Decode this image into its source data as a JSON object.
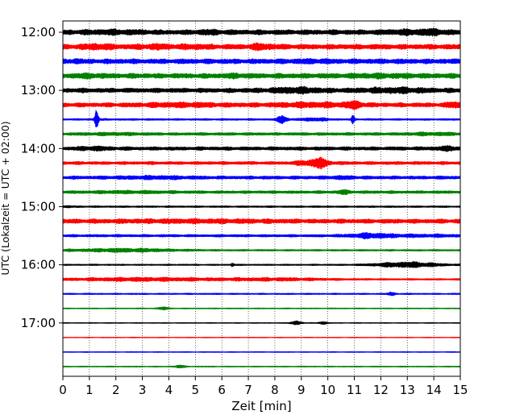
{
  "chart_data": {
    "type": "line",
    "title": "",
    "xlabel": "Zeit  [min]",
    "ylabel": "UTC (Lokalzeit = UTC + 02:00)",
    "xlim": [
      0,
      15
    ],
    "x_ticks": [
      0,
      1,
      2,
      3,
      4,
      5,
      6,
      7,
      8,
      9,
      10,
      11,
      12,
      13,
      14,
      15
    ],
    "x_grid": true,
    "y_tick_labels": [
      "12:00",
      "13:00",
      "14:00",
      "15:00",
      "16:00",
      "17:00"
    ],
    "y_tick_rows": [
      0,
      4,
      8,
      12,
      16,
      20
    ],
    "row_minutes": 15,
    "start_time": "12:00",
    "row_colors": [
      "#000000",
      "#ff0000",
      "#0000ff",
      "#008000"
    ],
    "rows": [
      {
        "time": "12:00",
        "base": 3.5,
        "events": [
          {
            "t": 2.0,
            "w": 1.0,
            "a": 1.2
          },
          {
            "t": 5.5,
            "w": 0.4,
            "a": 1.3
          },
          {
            "t": 13.0,
            "w": 0.8,
            "a": 1.5
          },
          {
            "t": 14.0,
            "w": 0.5,
            "a": 1.8
          }
        ]
      },
      {
        "time": "12:15",
        "base": 3.5,
        "events": [
          {
            "t": 1.3,
            "w": 0.6,
            "a": 2.0
          },
          {
            "t": 3.5,
            "w": 0.6,
            "a": 1.5
          },
          {
            "t": 5.0,
            "w": 0.5,
            "a": 1.3
          },
          {
            "t": 7.5,
            "w": 0.5,
            "a": 2.0
          }
        ]
      },
      {
        "time": "12:30",
        "base": 3.5,
        "events": [
          {
            "t": 0.5,
            "w": 0.3,
            "a": 1.0
          },
          {
            "t": 9.3,
            "w": 0.6,
            "a": 0.8
          }
        ]
      },
      {
        "time": "12:45",
        "base": 3.5,
        "events": [
          {
            "t": 1.0,
            "w": 0.5,
            "a": 1.0
          },
          {
            "t": 6.5,
            "w": 0.5,
            "a": 0.8
          },
          {
            "t": 12.0,
            "w": 1.0,
            "a": 1.0
          }
        ]
      },
      {
        "time": "13:00",
        "base": 3.2,
        "events": [
          {
            "t": 8.8,
            "w": 1.0,
            "a": 2.3
          },
          {
            "t": 12.5,
            "w": 1.2,
            "a": 2.0
          }
        ]
      },
      {
        "time": "13:15",
        "base": 3.0,
        "events": [
          {
            "t": 4.5,
            "w": 1.5,
            "a": 1.5
          },
          {
            "t": 9.5,
            "w": 1.5,
            "a": 1.8
          },
          {
            "t": 11.0,
            "w": 0.3,
            "a": 3.0
          },
          {
            "t": 14.8,
            "w": 0.3,
            "a": 2.5
          }
        ]
      },
      {
        "time": "13:30",
        "base": 1.3,
        "events": [
          {
            "t": 1.27,
            "w": 0.07,
            "a": 18.0
          },
          {
            "t": 8.3,
            "w": 0.2,
            "a": 5.0
          },
          {
            "t": 9.5,
            "w": 0.5,
            "a": 1.8
          },
          {
            "t": 10.95,
            "w": 0.06,
            "a": 5.0
          }
        ]
      },
      {
        "time": "13:45",
        "base": 2.0,
        "events": [
          {
            "t": 2.0,
            "w": 1.0,
            "a": 0.8
          },
          {
            "t": 14.0,
            "w": 1.0,
            "a": 1.0
          }
        ]
      },
      {
        "time": "14:00",
        "base": 2.5,
        "events": [
          {
            "t": 1.2,
            "w": 0.6,
            "a": 1.4
          },
          {
            "t": 14.5,
            "w": 0.5,
            "a": 1.6
          }
        ]
      },
      {
        "time": "14:15",
        "base": 2.2,
        "events": [
          {
            "t": 9.5,
            "w": 0.6,
            "a": 3.5
          },
          {
            "t": 9.7,
            "w": 0.15,
            "a": 4.8
          }
        ]
      },
      {
        "time": "14:30",
        "base": 2.3,
        "events": [
          {
            "t": 3.5,
            "w": 1.5,
            "a": 1.0
          },
          {
            "t": 10.5,
            "w": 0.5,
            "a": 1.0
          }
        ]
      },
      {
        "time": "14:45",
        "base": 2.0,
        "events": [
          {
            "t": 2.5,
            "w": 1.5,
            "a": 0.8
          },
          {
            "t": 10.6,
            "w": 0.2,
            "a": 2.0
          }
        ]
      },
      {
        "time": "15:00",
        "base": 1.2,
        "events": [
          {
            "t": 0.2,
            "w": 0.3,
            "a": 0.5
          }
        ]
      },
      {
        "time": "15:15",
        "base": 3.0,
        "events": [
          {
            "t": 5.0,
            "w": 3.0,
            "a": 0.8
          }
        ]
      },
      {
        "time": "15:30",
        "base": 1.8,
        "events": [
          {
            "t": 11.6,
            "w": 0.8,
            "a": 2.5
          },
          {
            "t": 13.5,
            "w": 1.5,
            "a": 1.0
          }
        ]
      },
      {
        "time": "15:45",
        "base": 1.2,
        "events": [
          {
            "t": 2.3,
            "w": 2.0,
            "a": 2.0
          }
        ]
      },
      {
        "time": "16:00",
        "base": 1.0,
        "events": [
          {
            "t": 6.4,
            "w": 0.06,
            "a": 3.0
          },
          {
            "t": 13.0,
            "w": 1.2,
            "a": 3.5
          }
        ]
      },
      {
        "time": "16:15",
        "base": 1.2,
        "events": [
          {
            "t": 3.0,
            "w": 3.0,
            "a": 2.0
          },
          {
            "t": 8.0,
            "w": 2.0,
            "a": 1.5
          }
        ]
      },
      {
        "time": "16:30",
        "base": 1.0,
        "events": [
          {
            "t": 12.4,
            "w": 0.15,
            "a": 1.8
          }
        ]
      },
      {
        "time": "16:45",
        "base": 0.7,
        "events": [
          {
            "t": 3.8,
            "w": 0.2,
            "a": 1.8
          }
        ]
      },
      {
        "time": "17:00",
        "base": 0.6,
        "events": [
          {
            "t": 8.8,
            "w": 0.2,
            "a": 2.8
          },
          {
            "t": 9.8,
            "w": 0.15,
            "a": 2.2
          }
        ]
      },
      {
        "time": "17:15",
        "base": 0.5,
        "events": []
      },
      {
        "time": "17:30",
        "base": 0.6,
        "events": []
      },
      {
        "time": "17:45",
        "base": 0.7,
        "events": [
          {
            "t": 4.4,
            "w": 0.2,
            "a": 1.8
          }
        ]
      }
    ]
  }
}
